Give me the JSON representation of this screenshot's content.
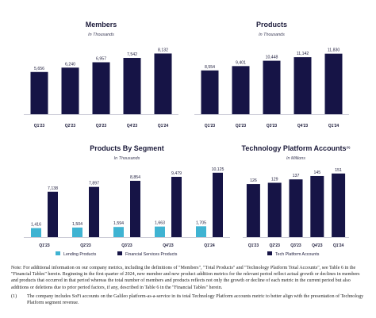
{
  "colors": {
    "dark": "#161446",
    "light": "#3fb3d2",
    "axis": "#9a9ab0"
  },
  "chart_data": [
    {
      "type": "bar",
      "title": "Members",
      "subtitle": "In Thousands",
      "categories": [
        "Q1'23",
        "Q2'23",
        "Q3'23",
        "Q4'23",
        "Q1'24"
      ],
      "values": [
        5656,
        6240,
        6957,
        7542,
        8132
      ],
      "value_labels": [
        "5,656",
        "6,240",
        "6,957",
        "7,542",
        "8,132"
      ],
      "ylim": [
        0,
        8500
      ],
      "legend": []
    },
    {
      "type": "bar",
      "title": "Products",
      "subtitle": "In Thousands",
      "categories": [
        "Q1'23",
        "Q2'23",
        "Q3'23",
        "Q4'23",
        "Q1'24"
      ],
      "values": [
        8554,
        9401,
        10448,
        11142,
        11830
      ],
      "value_labels": [
        "8,554",
        "9,401",
        "10,448",
        "11,142",
        "11,830"
      ],
      "ylim": [
        0,
        12400
      ],
      "legend": []
    },
    {
      "type": "bar",
      "title": "Products By Segment",
      "subtitle": "In Thousands",
      "categories": [
        "Q1'23",
        "Q2'23",
        "Q3'23",
        "Q4'23",
        "Q1'24"
      ],
      "series": [
        {
          "name": "Lending Products",
          "values": [
            1416,
            1504,
            1594,
            1663,
            1705
          ],
          "value_labels": [
            "1,416",
            "1,504",
            "1,594",
            "1,663",
            "1,705"
          ],
          "color": "#3fb3d2"
        },
        {
          "name": "Financial Services Products",
          "values": [
            7138,
            7897,
            8854,
            9479,
            10125
          ],
          "value_labels": [
            "7,138",
            "7,897",
            "8,854",
            "9,479",
            "10,125"
          ],
          "color": "#161446"
        }
      ],
      "ylim": [
        0,
        10600
      ],
      "legend_position": "bottom"
    },
    {
      "type": "bar",
      "title": "Technology Platform Accounts",
      "title_superscript": "(1)",
      "subtitle": "In Millions",
      "categories": [
        "Q1'23",
        "Q2'23",
        "Q3'23",
        "Q4'23",
        "Q1'24"
      ],
      "values": [
        126,
        129,
        137,
        145,
        151
      ],
      "value_labels": [
        "126",
        "129",
        "137",
        "145",
        "151"
      ],
      "ylim": [
        0,
        160
      ],
      "legend": [
        "Tech Platform Accounts"
      ],
      "legend_position": "bottom"
    }
  ],
  "notes": {
    "main": "Note: For additional information on our company metrics, including the definitions of \"Members\", \"Total Products\" and \"Technology Platform Total Accounts\", see Table 6 in the \"Financial Tables\" herein. Beginning in the first quarter of 2024, new member and new product addition metrics for the relevant period reflect actual growth or declines in members and products that occurred in that period whereas the total number of members and products reflects not only the growth or decline of each metric in the current period but also additions or deletions due to prior period factors, if any, described in Table 6 in the \"Financial Tables\" herein.",
    "footnote_number": "(1)",
    "footnote_text": "The company includes SoFi accounts on the Galileo platform-as-a-service in its total Technology Platform accounts metric to better align with the presentation of Technology Platform segment revenue."
  }
}
